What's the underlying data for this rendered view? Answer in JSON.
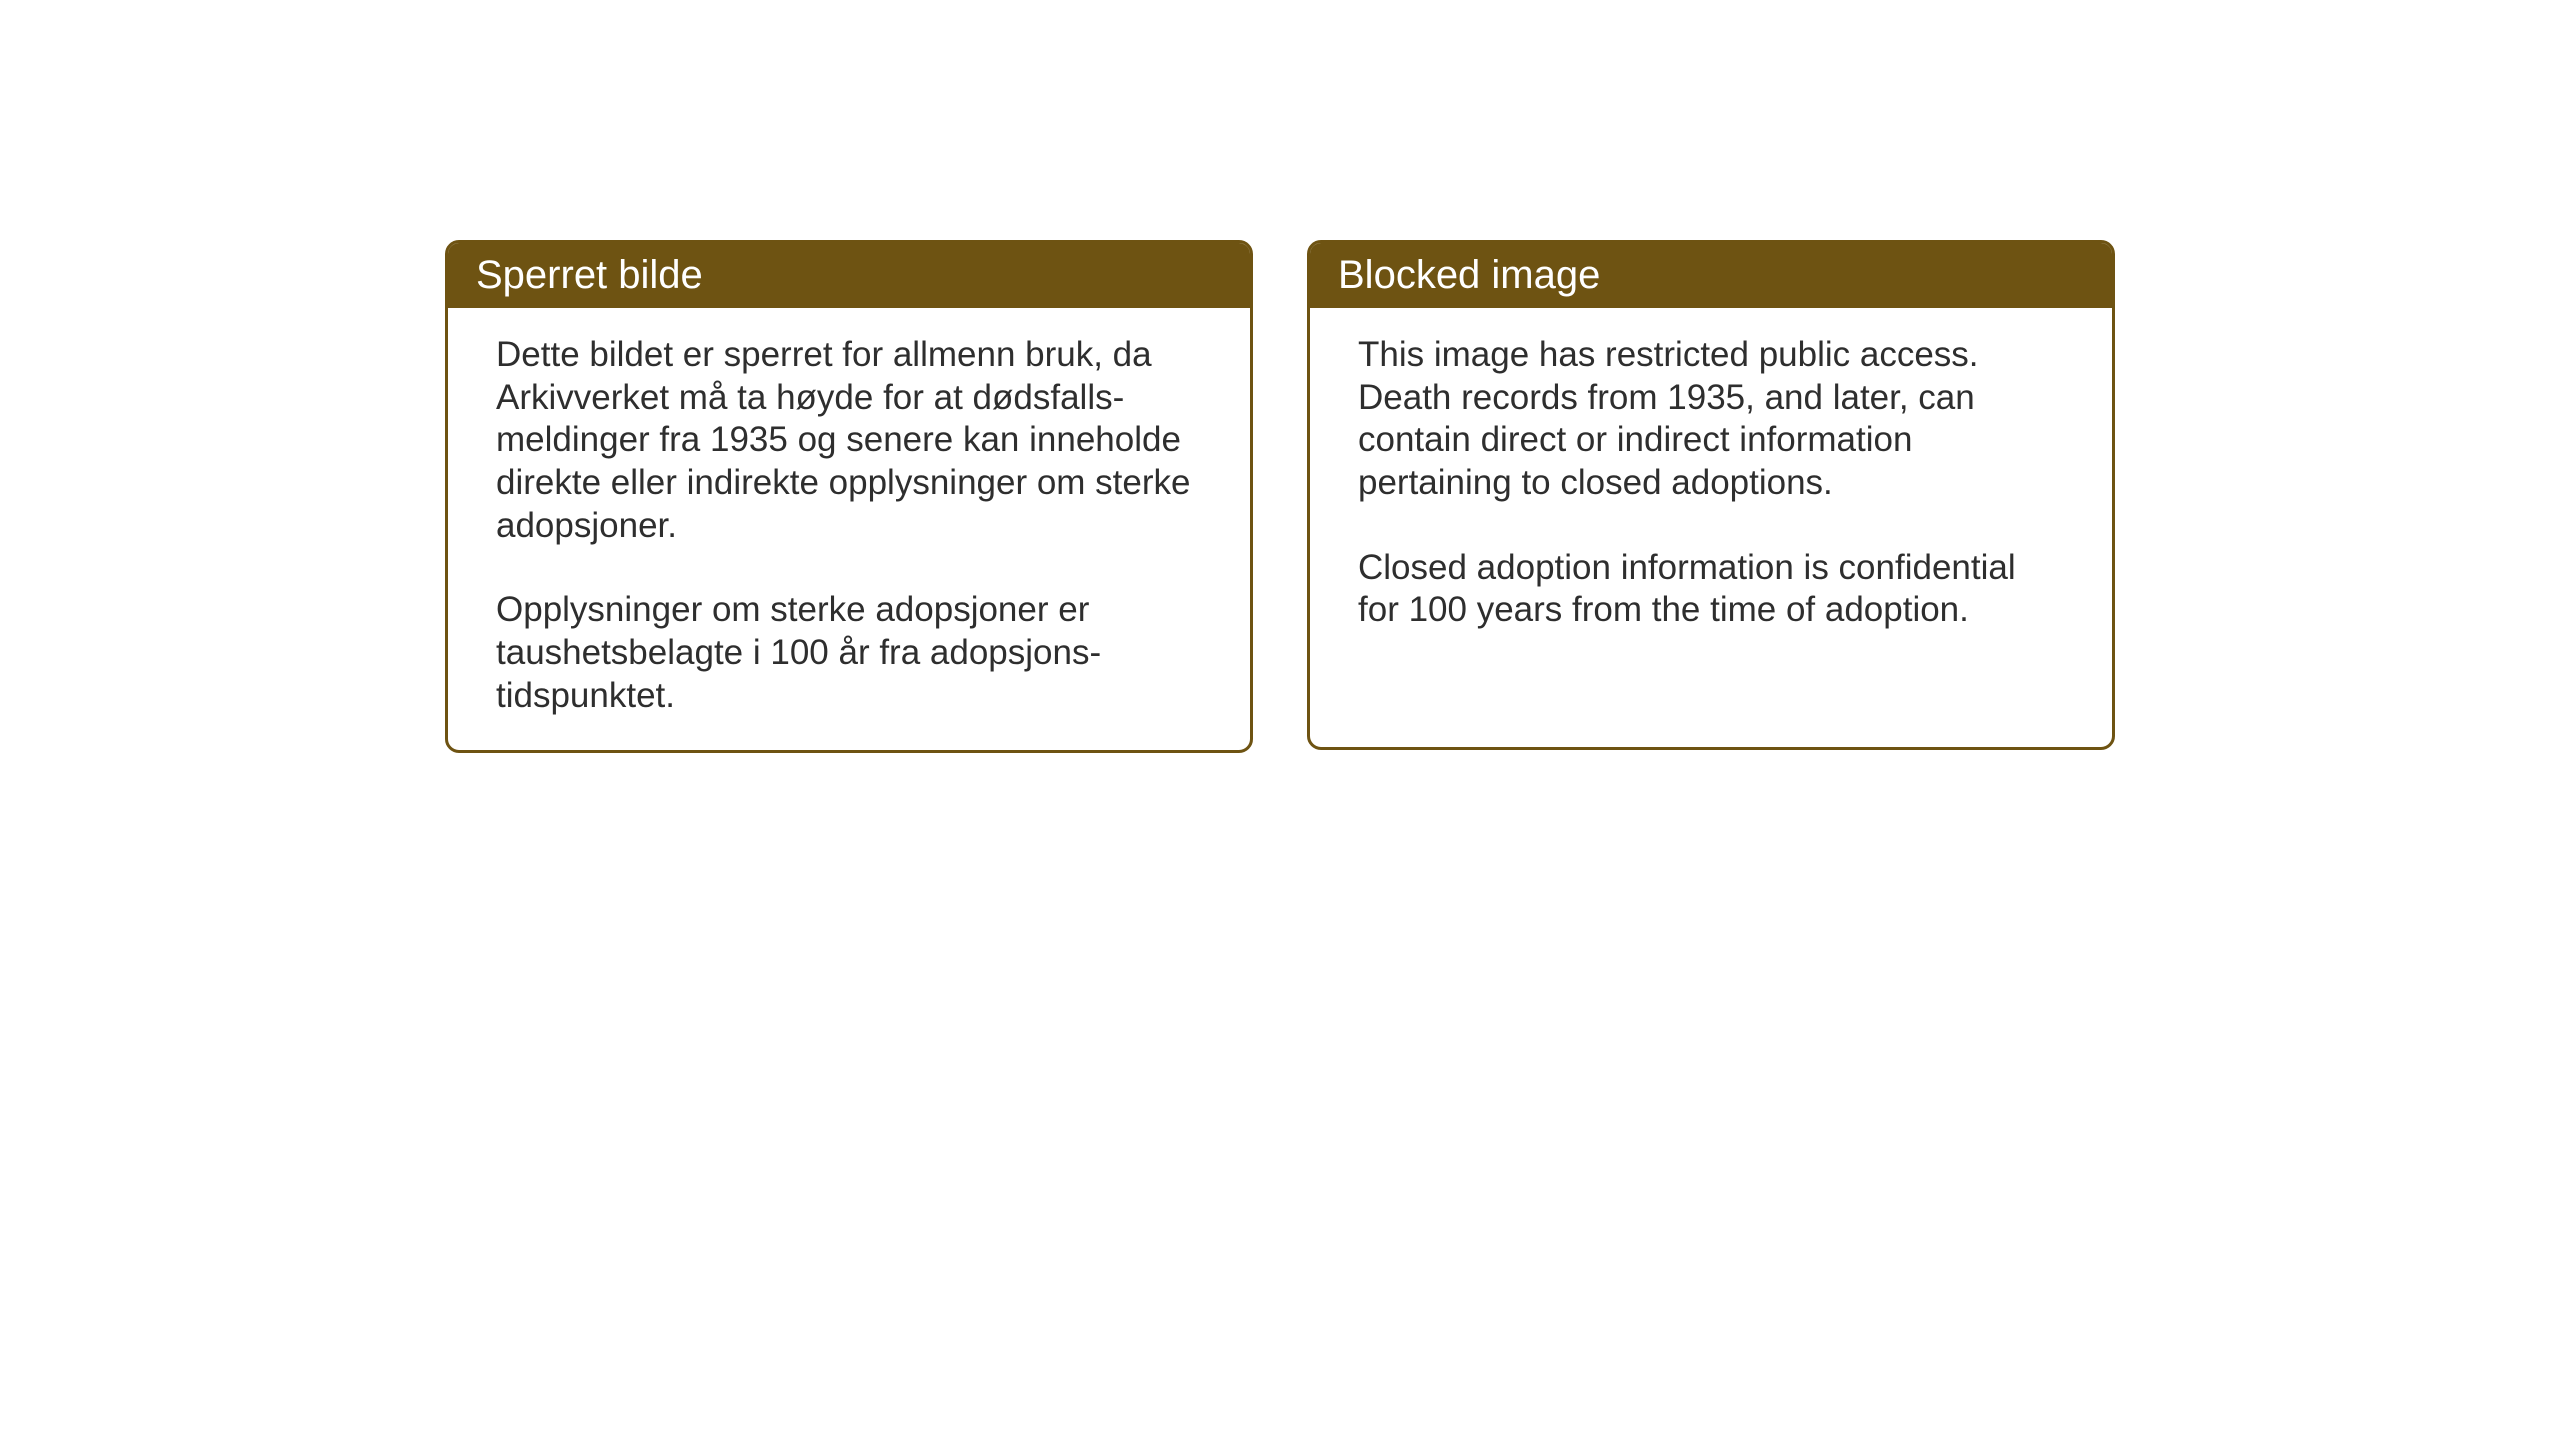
{
  "layout": {
    "background_color": "#ffffff",
    "card_border_color": "#6e5312",
    "card_header_bg": "#6e5312",
    "card_header_text_color": "#ffffff",
    "card_body_text_color": "#2e2e2e",
    "card_border_radius": 14,
    "card_border_width": 3,
    "header_fontsize": 40,
    "body_fontsize": 35,
    "card_gap": 54
  },
  "cards": {
    "left": {
      "title": "Sperret bilde",
      "paragraph1": "Dette bildet er sperret for allmenn bruk, da Arkivverket må ta høyde for at dødsfalls-meldinger fra 1935 og senere kan inneholde direkte eller indirekte opplysninger om sterke adopsjoner.",
      "paragraph2": "Opplysninger om sterke adopsjoner er taushetsbelagte i 100 år fra adopsjons-tidspunktet."
    },
    "right": {
      "title": "Blocked image",
      "paragraph1": "This image has restricted public access. Death records from 1935, and later, can contain direct or indirect information pertaining to closed adoptions.",
      "paragraph2": "Closed adoption information is confidential for 100 years from the time of adoption."
    }
  }
}
